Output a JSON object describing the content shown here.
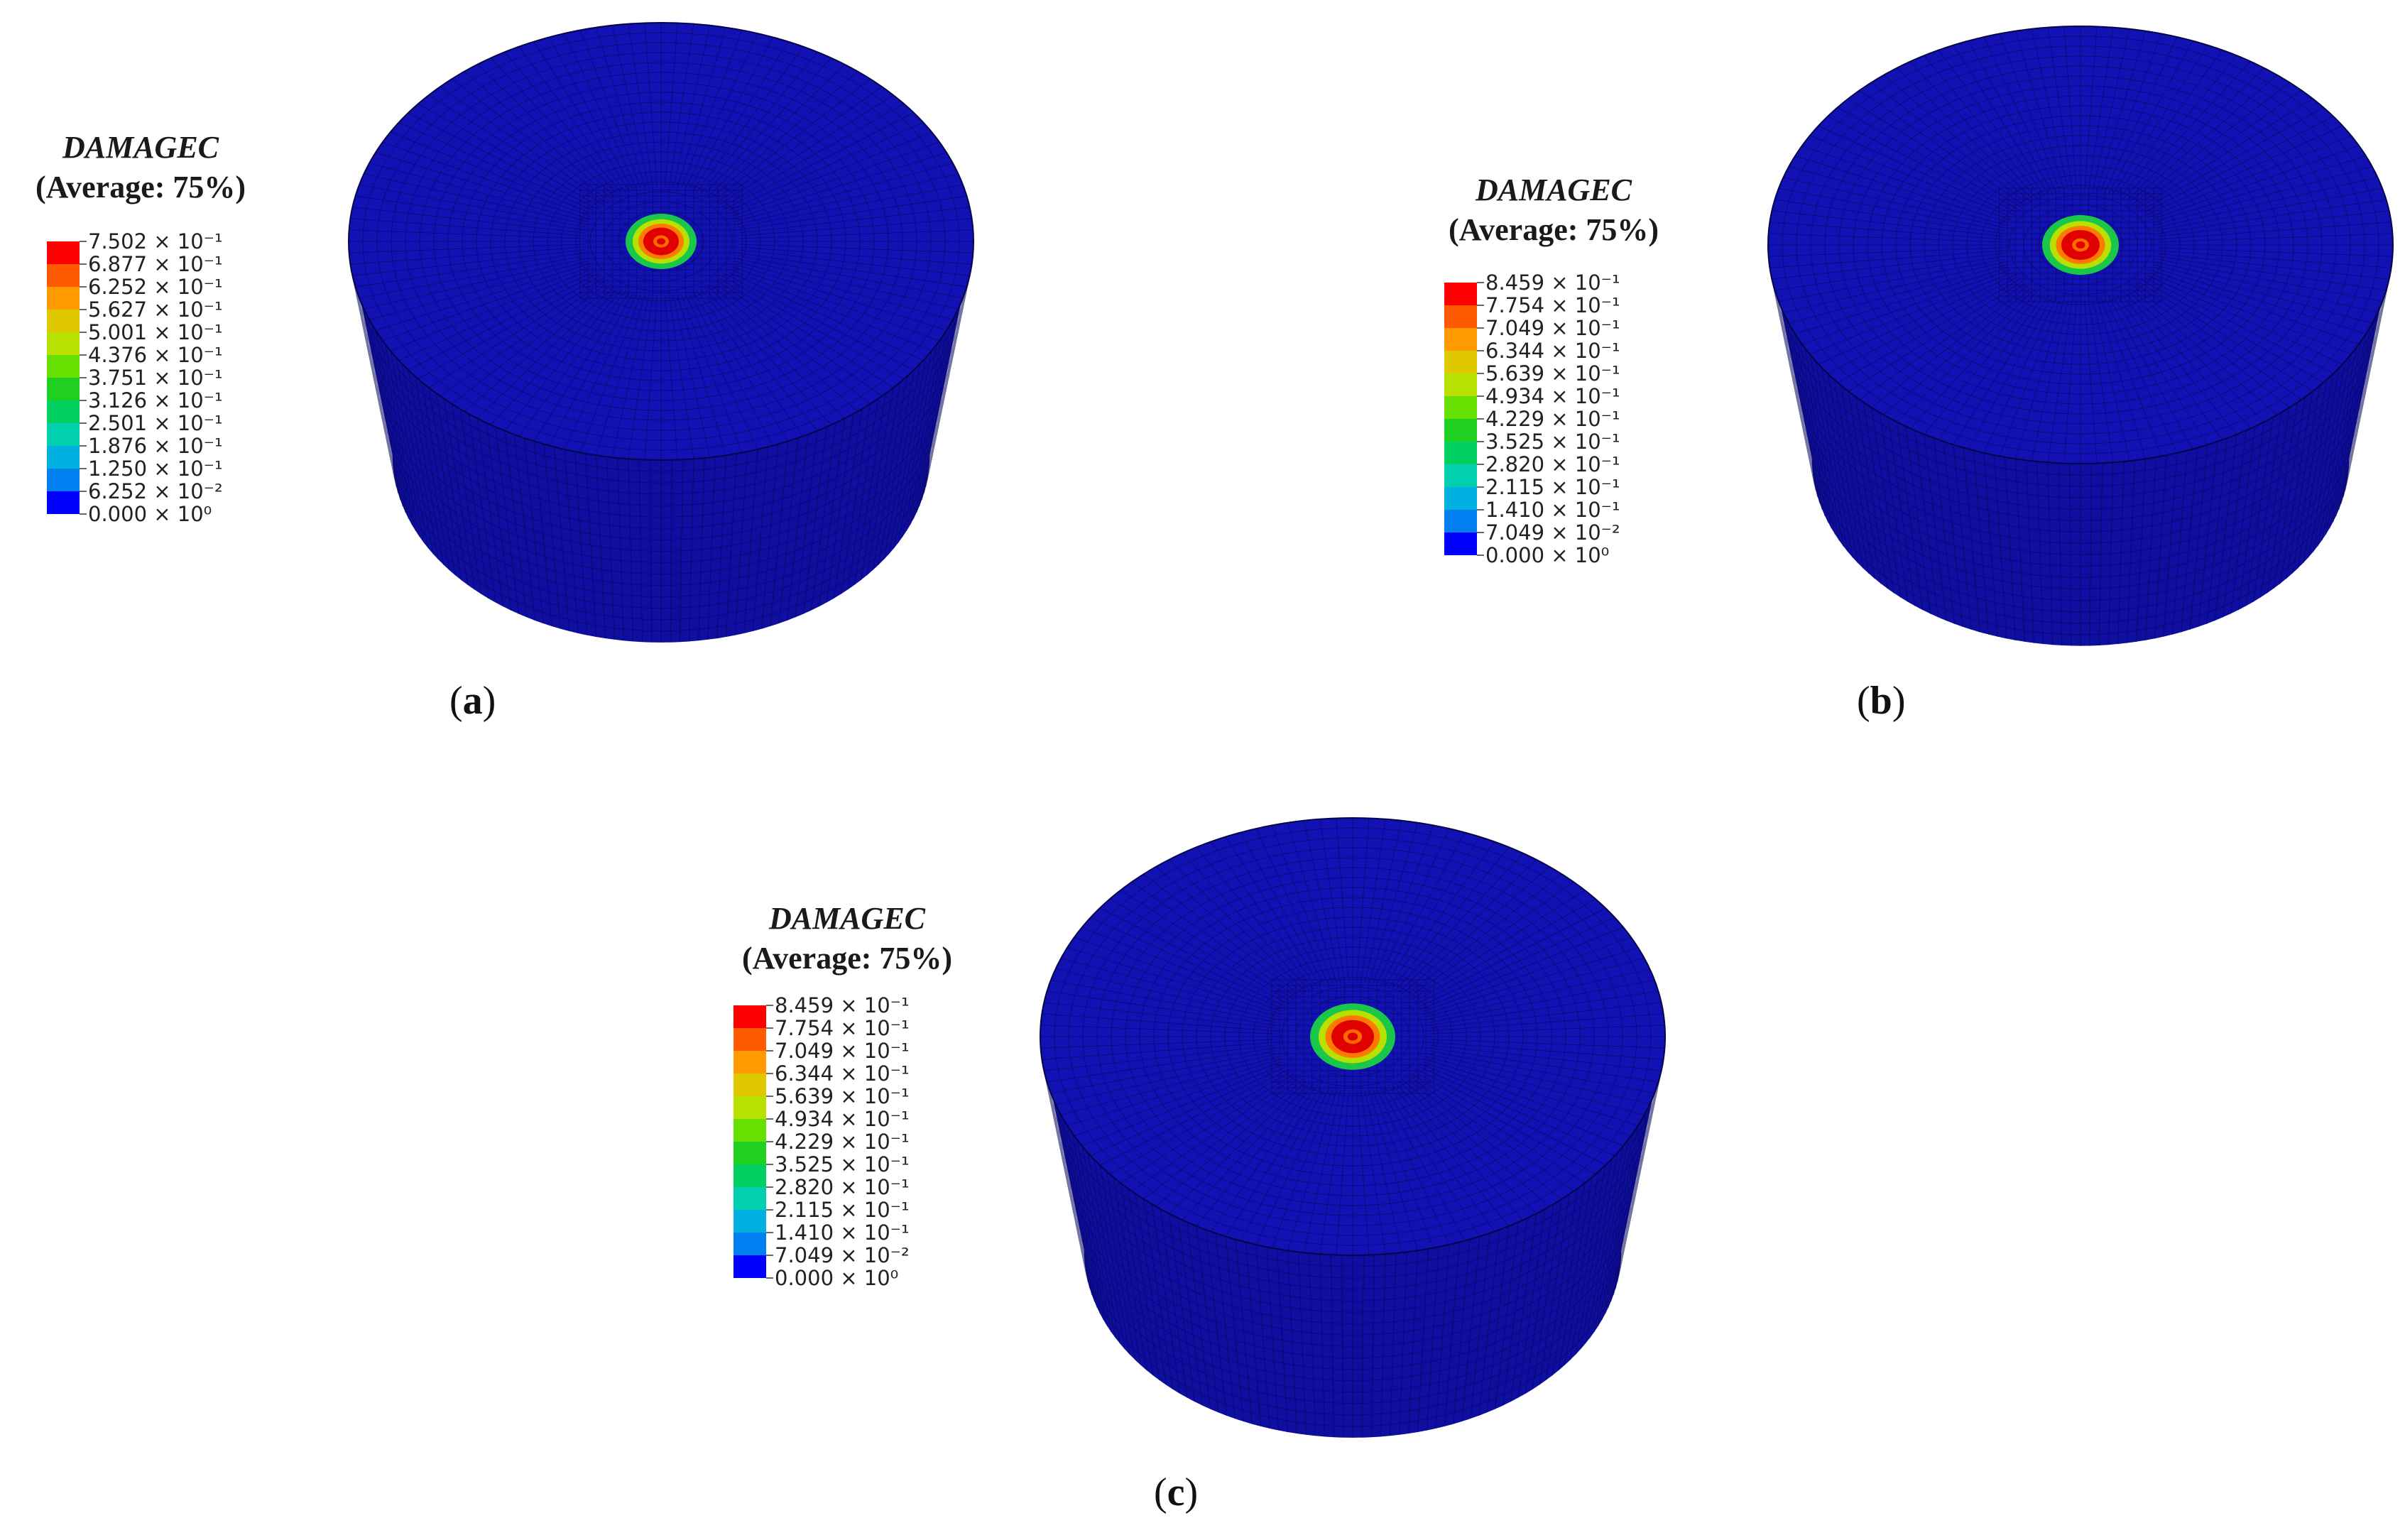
{
  "panels": [
    {
      "legend_title": "DAMAGEC",
      "legend_subtitle": "(Average: 75%)",
      "legend_labels": [
        "7.502 × 10⁻¹",
        "6.877 × 10⁻¹",
        "6.252 × 10⁻¹",
        "5.627 × 10⁻¹",
        "5.001 × 10⁻¹",
        "4.376 × 10⁻¹",
        "3.751 × 10⁻¹",
        "3.126 × 10⁻¹",
        "2.501 × 10⁻¹",
        "1.876 × 10⁻¹",
        "1.250 × 10⁻¹",
        "6.252 × 10⁻²",
        "0.000 × 10⁰"
      ],
      "caption_letter": "a"
    },
    {
      "legend_title": "DAMAGEC",
      "legend_subtitle": "(Average: 75%)",
      "legend_labels": [
        "8.459 × 10⁻¹",
        "7.754 × 10⁻¹",
        "7.049 × 10⁻¹",
        "6.344 × 10⁻¹",
        "5.639 × 10⁻¹",
        "4.934 × 10⁻¹",
        "4.229 × 10⁻¹",
        "3.525 × 10⁻¹",
        "2.820 × 10⁻¹",
        "2.115 × 10⁻¹",
        "1.410 × 10⁻¹",
        "7.049 × 10⁻²",
        "0.000 × 10⁰"
      ],
      "caption_letter": "b"
    },
    {
      "legend_title": "DAMAGEC",
      "legend_subtitle": "(Average: 75%)",
      "legend_labels": [
        "8.459 × 10⁻¹",
        "7.754 × 10⁻¹",
        "7.049 × 10⁻¹",
        "6.344 × 10⁻¹",
        "5.639 × 10⁻¹",
        "4.934 × 10⁻¹",
        "4.229 × 10⁻¹",
        "3.525 × 10⁻¹",
        "2.820 × 10⁻¹",
        "2.115 × 10⁻¹",
        "1.410 × 10⁻¹",
        "7.049 × 10⁻²",
        "0.000 × 10⁰"
      ],
      "caption_letter": "c"
    }
  ],
  "colors": {
    "contour_scale": [
      "#ff0000",
      "#ff5a00",
      "#ff9a00",
      "#e0c800",
      "#b8e000",
      "#66e000",
      "#20d020",
      "#00d060",
      "#00d0b0",
      "#00b0e0",
      "#0080f0",
      "#0000ff"
    ],
    "mesh_body": "#1212b4",
    "mesh_line": "#06065a"
  }
}
